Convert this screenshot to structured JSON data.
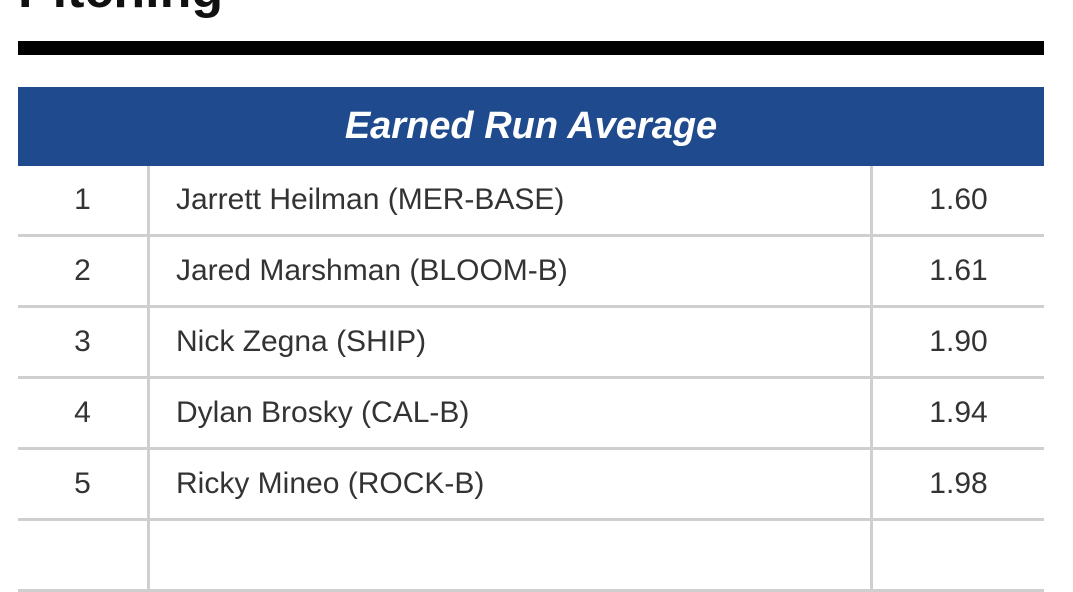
{
  "header": {
    "title": "Pitching"
  },
  "table": {
    "title": "Earned Run Average",
    "rows": [
      [
        "1",
        "Jarrett Heilman (MER-BASE)",
        "1.60"
      ],
      [
        "2",
        "Jared Marshman (BLOOM-B)",
        "1.61"
      ],
      [
        "3",
        "Nick Zegna (SHIP)",
        "1.90"
      ],
      [
        "4",
        "Dylan Brosky (CAL-B)",
        "1.94"
      ],
      [
        "5",
        "Ricky Mineo (ROCK-B)",
        "1.98"
      ]
    ]
  }
}
